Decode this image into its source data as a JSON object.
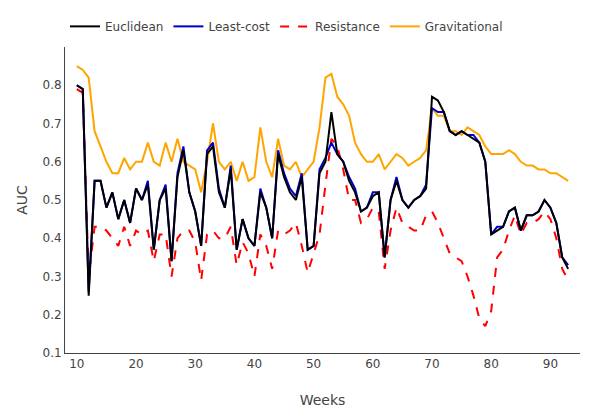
{
  "chart_data": {
    "type": "line",
    "xlabel": "Weeks",
    "ylabel": "AUC",
    "x": [
      10,
      11,
      12,
      13,
      14,
      15,
      16,
      17,
      18,
      19,
      20,
      21,
      22,
      23,
      24,
      25,
      26,
      27,
      28,
      29,
      30,
      31,
      32,
      33,
      34,
      35,
      36,
      37,
      38,
      39,
      40,
      41,
      42,
      43,
      44,
      45,
      46,
      47,
      48,
      49,
      50,
      51,
      52,
      53,
      54,
      55,
      56,
      57,
      58,
      59,
      60,
      61,
      62,
      63,
      64,
      65,
      66,
      67,
      68,
      69,
      70,
      71,
      72,
      73,
      74,
      75,
      76,
      77,
      78,
      79,
      80,
      81,
      82,
      83,
      84,
      85,
      86,
      87,
      88,
      89,
      90,
      91,
      92,
      93
    ],
    "series": [
      {
        "name": "Gravitational",
        "color": "#FFA500",
        "line_style": "solid",
        "values": [
          0.85,
          0.84,
          0.82,
          0.68,
          0.64,
          0.6,
          0.57,
          0.57,
          0.61,
          0.58,
          0.6,
          0.6,
          0.65,
          0.6,
          0.59,
          0.65,
          0.6,
          0.66,
          0.6,
          0.59,
          0.58,
          0.52,
          0.6,
          0.7,
          0.6,
          0.58,
          0.6,
          0.55,
          0.6,
          0.55,
          0.56,
          0.69,
          0.6,
          0.56,
          0.66,
          0.59,
          0.58,
          0.6,
          0.56,
          0.58,
          0.6,
          0.69,
          0.82,
          0.83,
          0.77,
          0.75,
          0.72,
          0.65,
          0.62,
          0.6,
          0.6,
          0.62,
          0.58,
          0.6,
          0.62,
          0.61,
          0.59,
          0.6,
          0.61,
          0.63,
          0.74,
          0.72,
          0.72,
          0.68,
          0.68,
          0.67,
          0.69,
          0.68,
          0.67,
          0.64,
          0.62,
          0.62,
          0.62,
          0.63,
          0.62,
          0.6,
          0.59,
          0.59,
          0.58,
          0.58,
          0.57,
          0.57,
          0.56,
          0.55
        ]
      },
      {
        "name": "Resistance",
        "color": "#FF0000",
        "line_style": "dashed",
        "values": [
          0.79,
          0.78,
          0.3,
          0.43,
          0.43,
          0.42,
          0.4,
          0.38,
          0.43,
          0.38,
          0.42,
          0.41,
          0.42,
          0.34,
          0.41,
          0.41,
          0.3,
          0.4,
          0.42,
          0.42,
          0.39,
          0.29,
          0.41,
          0.42,
          0.4,
          0.4,
          0.43,
          0.33,
          0.39,
          0.36,
          0.3,
          0.41,
          0.38,
          0.32,
          0.42,
          0.41,
          0.42,
          0.44,
          0.38,
          0.31,
          0.36,
          0.41,
          0.54,
          0.66,
          0.64,
          0.58,
          0.5,
          0.5,
          0.44,
          0.45,
          0.48,
          0.47,
          0.32,
          0.42,
          0.48,
          0.44,
          0.43,
          0.42,
          0.42,
          0.46,
          0.47,
          0.44,
          0.4,
          0.36,
          0.35,
          0.34,
          0.3,
          0.25,
          0.19,
          0.17,
          0.21,
          0.35,
          0.37,
          0.42,
          0.46,
          0.41,
          0.44,
          0.44,
          0.45,
          0.47,
          0.45,
          0.4,
          0.32,
          0.29
        ]
      },
      {
        "name": "Least-cost",
        "color": "#0000CC",
        "line_style": "solid",
        "values": [
          0.8,
          0.79,
          0.26,
          0.55,
          0.55,
          0.48,
          0.52,
          0.45,
          0.5,
          0.44,
          0.53,
          0.5,
          0.55,
          0.37,
          0.5,
          0.54,
          0.34,
          0.57,
          0.64,
          0.52,
          0.47,
          0.38,
          0.63,
          0.65,
          0.53,
          0.48,
          0.59,
          0.37,
          0.45,
          0.4,
          0.38,
          0.53,
          0.48,
          0.4,
          0.63,
          0.57,
          0.53,
          0.51,
          0.57,
          0.37,
          0.38,
          0.58,
          0.61,
          0.65,
          0.62,
          0.6,
          0.56,
          0.53,
          0.47,
          0.48,
          0.52,
          0.52,
          0.35,
          0.5,
          0.56,
          0.5,
          0.48,
          0.5,
          0.51,
          0.54,
          0.74,
          0.73,
          0.73,
          0.68,
          0.67,
          0.68,
          0.67,
          0.67,
          0.65,
          0.6,
          0.41,
          0.43,
          0.43,
          0.47,
          0.48,
          0.42,
          0.46,
          0.46,
          0.47,
          0.5,
          0.48,
          0.44,
          0.35,
          0.33
        ]
      },
      {
        "name": "Euclidean",
        "color": "#000000",
        "line_style": "solid",
        "values": [
          0.8,
          0.79,
          0.25,
          0.55,
          0.55,
          0.48,
          0.52,
          0.45,
          0.5,
          0.44,
          0.53,
          0.5,
          0.54,
          0.37,
          0.5,
          0.53,
          0.34,
          0.56,
          0.63,
          0.52,
          0.47,
          0.38,
          0.62,
          0.64,
          0.52,
          0.48,
          0.58,
          0.37,
          0.45,
          0.4,
          0.38,
          0.52,
          0.48,
          0.4,
          0.62,
          0.56,
          0.52,
          0.5,
          0.56,
          0.37,
          0.38,
          0.57,
          0.6,
          0.73,
          0.62,
          0.6,
          0.55,
          0.52,
          0.47,
          0.48,
          0.51,
          0.52,
          0.35,
          0.5,
          0.55,
          0.5,
          0.48,
          0.5,
          0.51,
          0.53,
          0.77,
          0.76,
          0.73,
          0.68,
          0.67,
          0.68,
          0.67,
          0.66,
          0.65,
          0.6,
          0.41,
          0.42,
          0.43,
          0.47,
          0.48,
          0.42,
          0.46,
          0.46,
          0.47,
          0.5,
          0.48,
          0.44,
          0.35,
          0.32
        ]
      }
    ],
    "xlim": [
      8,
      95
    ],
    "ylim": [
      0.1,
      0.9
    ],
    "xticks": [
      10,
      20,
      30,
      40,
      50,
      60,
      70,
      80,
      90
    ],
    "yticks": [
      0.1,
      0.2,
      0.3,
      0.4,
      0.5,
      0.6,
      0.7,
      0.8
    ],
    "grid": false,
    "legend": "top"
  }
}
